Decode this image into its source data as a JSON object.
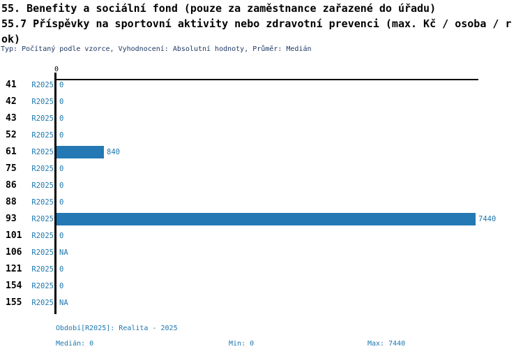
{
  "header": {
    "title_line1": "55. Benefity a sociální fond (pouze za zaměstnance zařazené do úřadu)",
    "title_line2": "55.7 Příspěvky na sportovní aktivity nebo zdravotní prevenci (max. Kč / osoba / r",
    "title_line3": "ok)",
    "meta_line": "Typ: Počítaný podle vzorce, Vyhodnocení: Absolutní hodnoty, Průměr: Medián"
  },
  "chart_data": {
    "type": "bar",
    "orientation": "horizontal",
    "title": "55.7 Příspěvky na sportovní aktivity nebo zdravotní prevenci (max. Kč / osoba / rok)",
    "categories": [
      "41",
      "42",
      "43",
      "52",
      "61",
      "75",
      "86",
      "88",
      "93",
      "101",
      "106",
      "121",
      "154",
      "155"
    ],
    "series_label": "R2025",
    "values": [
      0,
      0,
      0,
      0,
      840,
      0,
      0,
      0,
      7440,
      0,
      null,
      0,
      0,
      null
    ],
    "value_labels": [
      "0",
      "0",
      "0",
      "0",
      "840",
      "0",
      "0",
      "0",
      "7440",
      "0",
      "NA",
      "0",
      "0",
      "NA"
    ],
    "xlim": [
      0,
      7440
    ],
    "axis_tick_label": "0",
    "grid": false,
    "legend_position": "none"
  },
  "footer": {
    "period_line": "Období[R2025]: Realita - 2025",
    "median_label": "Medián: 0",
    "min_label": "Min: 0",
    "max_label": "Max: 7440"
  },
  "colors": {
    "bar_blue": "#2478b4",
    "text_blue": "#1d77ad",
    "meta_dark": "#1f3864",
    "text_black": "#000000"
  }
}
